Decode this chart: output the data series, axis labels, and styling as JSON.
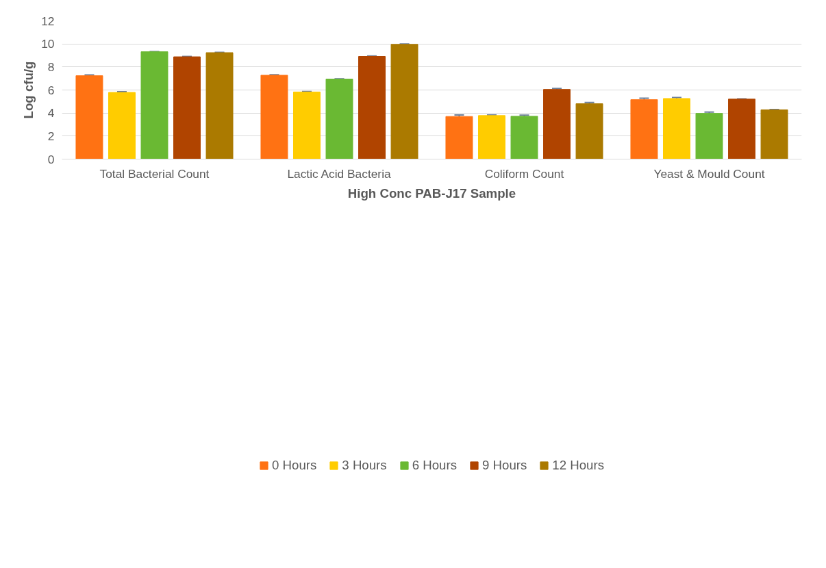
{
  "chart_data": {
    "type": "bar",
    "xlabel": "High Conc PAB-J17 Sample",
    "ylabel": "Log cfu/g",
    "categories": [
      "Total Bacterial Count",
      "Lactic Acid Bacteria",
      "Coliform Count",
      "Yeast & Mould Count"
    ],
    "series": [
      {
        "name": "0 Hours",
        "color": "#ff7213",
        "values": [
          7.24,
          7.28,
          3.7,
          5.16
        ],
        "errors": [
          0.06,
          0.04,
          0.13,
          0.12
        ]
      },
      {
        "name": "3 Hours",
        "color": "#ffcc00",
        "values": [
          5.79,
          5.83,
          3.78,
          5.26
        ],
        "errors": [
          0.06,
          0.04,
          0.05,
          0.08
        ]
      },
      {
        "name": "6 Hours",
        "color": "#6ab933",
        "values": [
          9.32,
          6.95,
          3.72,
          3.97
        ],
        "errors": [
          0.01,
          0.01,
          0.1,
          0.12
        ]
      },
      {
        "name": "9 Hours",
        "color": "#b04400",
        "values": [
          8.88,
          8.91,
          6.05,
          5.21
        ],
        "errors": [
          0.03,
          0.05,
          0.08,
          0.02
        ]
      },
      {
        "name": "12 Hours",
        "color": "#ab7a00",
        "values": [
          9.24,
          9.96,
          4.81,
          4.28
        ],
        "errors": [
          0.03,
          0.03,
          0.1,
          0.02
        ]
      }
    ],
    "ylim": [
      0,
      12
    ],
    "yticks": [
      0,
      2,
      4,
      6,
      8,
      10,
      12
    ],
    "grid": "y",
    "legend": "bottom"
  }
}
